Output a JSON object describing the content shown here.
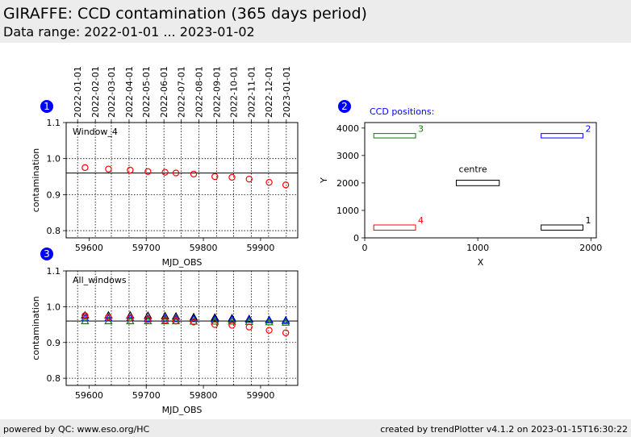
{
  "header": {
    "title": "GIRAFFE: CCD contamination (365 days period)",
    "subtitle": "Data range: 2022-01-01 ... 2023-01-02"
  },
  "footer": {
    "left": "powered by QC: www.eso.org/HC",
    "right": "created by trendPlotter v4.1.2 on 2023-01-15T16:30:22"
  },
  "colors": {
    "badge": "#0000ff",
    "window1": "#000000",
    "window2": "#0000ff",
    "window3": "#008000",
    "window4": "#ff0000"
  },
  "chart_data": [
    {
      "id": "1",
      "type": "scatter",
      "annotation": "Window_4",
      "xlabel": "MJD_OBS",
      "ylabel": "contamination",
      "xlim": [
        59560,
        59965
      ],
      "ylim": [
        0.78,
        1.1
      ],
      "x_ticks": [
        59600,
        59700,
        59800,
        59900
      ],
      "y_ticks": [
        0.8,
        0.9,
        1.0,
        1.1
      ],
      "y_tick_labels": [
        "0.8",
        "0.9",
        "1.0",
        "1.1"
      ],
      "grid": true,
      "date_ticks": [
        "2022-01-01",
        "2022-02-01",
        "2022-03-01",
        "2022-04-01",
        "2022-05-01",
        "2022-06-01",
        "2022-07-01",
        "2022-08-01",
        "2022-09-01",
        "2022-10-01",
        "2022-11-01",
        "2022-12-01",
        "2023-01-01"
      ],
      "date_tick_mjd": [
        59580,
        59611,
        59639,
        59670,
        59700,
        59731,
        59761,
        59792,
        59823,
        59853,
        59884,
        59914,
        59945
      ],
      "reference_line": 0.96,
      "series": [
        {
          "marker": "circle",
          "color": "#ff0000",
          "x": [
            59593,
            59634,
            59672,
            59703,
            59733,
            59752,
            59783,
            59820,
            59850,
            59880,
            59915,
            59944
          ],
          "y": [
            0.975,
            0.971,
            0.968,
            0.964,
            0.962,
            0.96,
            0.957,
            0.95,
            0.948,
            0.943,
            0.934,
            0.927
          ]
        }
      ]
    },
    {
      "id": "2",
      "type": "diagram",
      "title": "CCD positions:",
      "xlabel": "X",
      "ylabel": "Y",
      "xlim": [
        0,
        2048
      ],
      "ylim": [
        0,
        4200
      ],
      "x_ticks": [
        0,
        1000,
        2000
      ],
      "y_ticks": [
        0,
        1000,
        2000,
        3000,
        4000
      ],
      "boxes": [
        {
          "label": "1",
          "color": "#000000",
          "x0": 1560,
          "x1": 1930,
          "y0": 280,
          "y1": 470
        },
        {
          "label": "2",
          "color": "#0000ff",
          "x0": 1560,
          "x1": 1930,
          "y0": 3640,
          "y1": 3800
        },
        {
          "label": "3",
          "color": "#008000",
          "x0": 80,
          "x1": 450,
          "y0": 3640,
          "y1": 3800
        },
        {
          "label": "4",
          "color": "#ff0000",
          "x0": 80,
          "x1": 450,
          "y0": 280,
          "y1": 470
        },
        {
          "label": "centre",
          "color": "#000000",
          "x0": 810,
          "x1": 1190,
          "y0": 1900,
          "y1": 2100
        }
      ]
    },
    {
      "id": "3",
      "type": "scatter",
      "annotation": "All_windows",
      "xlabel": "MJD_OBS",
      "ylabel": "contamination",
      "xlim": [
        59560,
        59965
      ],
      "ylim": [
        0.78,
        1.1
      ],
      "x_ticks": [
        59600,
        59700,
        59800,
        59900
      ],
      "y_ticks": [
        0.8,
        0.9,
        1.0,
        1.1
      ],
      "y_tick_labels": [
        "0.8",
        "0.9",
        "1.0",
        "1.1"
      ],
      "grid": true,
      "reference_line": 0.96,
      "series": [
        {
          "marker": "triangle",
          "color": "#000000",
          "x": [
            59593,
            59634,
            59672,
            59703,
            59733,
            59752,
            59783,
            59820,
            59850,
            59880,
            59915,
            59944
          ],
          "y": [
            0.976,
            0.976,
            0.976,
            0.975,
            0.974,
            0.973,
            0.971,
            0.97,
            0.968,
            0.966,
            0.963,
            0.961
          ]
        },
        {
          "marker": "triangle",
          "color": "#0000ff",
          "x": [
            59593,
            59634,
            59672,
            59703,
            59733,
            59752,
            59783,
            59820,
            59850,
            59880,
            59915,
            59944
          ],
          "y": [
            0.968,
            0.968,
            0.968,
            0.967,
            0.967,
            0.966,
            0.966,
            0.965,
            0.965,
            0.964,
            0.963,
            0.962
          ]
        },
        {
          "marker": "triangle",
          "color": "#008000",
          "x": [
            59593,
            59634,
            59672,
            59703,
            59733,
            59752,
            59783,
            59820,
            59850,
            59880,
            59915,
            59944
          ],
          "y": [
            0.96,
            0.96,
            0.96,
            0.96,
            0.96,
            0.96,
            0.959,
            0.959,
            0.959,
            0.958,
            0.957,
            0.956
          ]
        },
        {
          "marker": "circle",
          "color": "#ff0000",
          "x": [
            59593,
            59634,
            59672,
            59703,
            59733,
            59752,
            59783,
            59820,
            59850,
            59880,
            59915,
            59944
          ],
          "y": [
            0.975,
            0.971,
            0.968,
            0.964,
            0.962,
            0.96,
            0.957,
            0.95,
            0.948,
            0.943,
            0.934,
            0.927
          ]
        }
      ]
    }
  ]
}
